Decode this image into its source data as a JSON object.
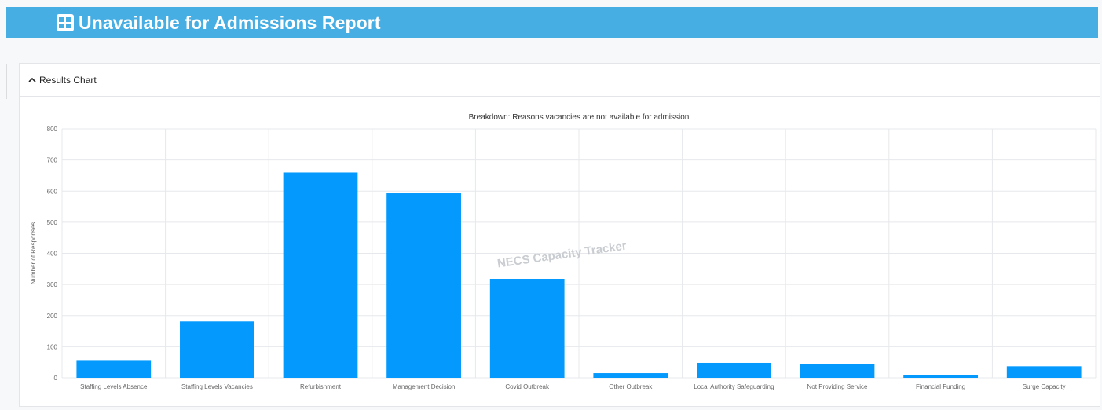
{
  "header": {
    "title": "Unavailable for Admissions Report",
    "icon": "table-icon",
    "color": "#46aee3"
  },
  "panel": {
    "title": "Results Chart",
    "toggle_icon": "chevron-up-icon"
  },
  "watermark": "NECS Capacity Tracker",
  "chart_data": {
    "type": "bar",
    "title": "Breakdown: Reasons vacancies are not available for admission",
    "xlabel": "",
    "ylabel": "Number of Responses",
    "ylim": [
      0,
      800
    ],
    "yticks": [
      "0",
      "100",
      "200",
      "300",
      "400",
      "500",
      "600",
      "700",
      "800"
    ],
    "grid": true,
    "bar_color": "#0399fd",
    "categories": [
      "Staffing Levels Absence",
      "Staffing Levels Vacancies",
      "Refurbishment",
      "Management Decision",
      "Covid Outbreak",
      "Other Outbreak",
      "Local Authority Safeguarding",
      "Not Providing Service",
      "Financial Funding",
      "Surge Capacity"
    ],
    "values": [
      57,
      181,
      660,
      593,
      318,
      15,
      48,
      43,
      8,
      37
    ]
  }
}
